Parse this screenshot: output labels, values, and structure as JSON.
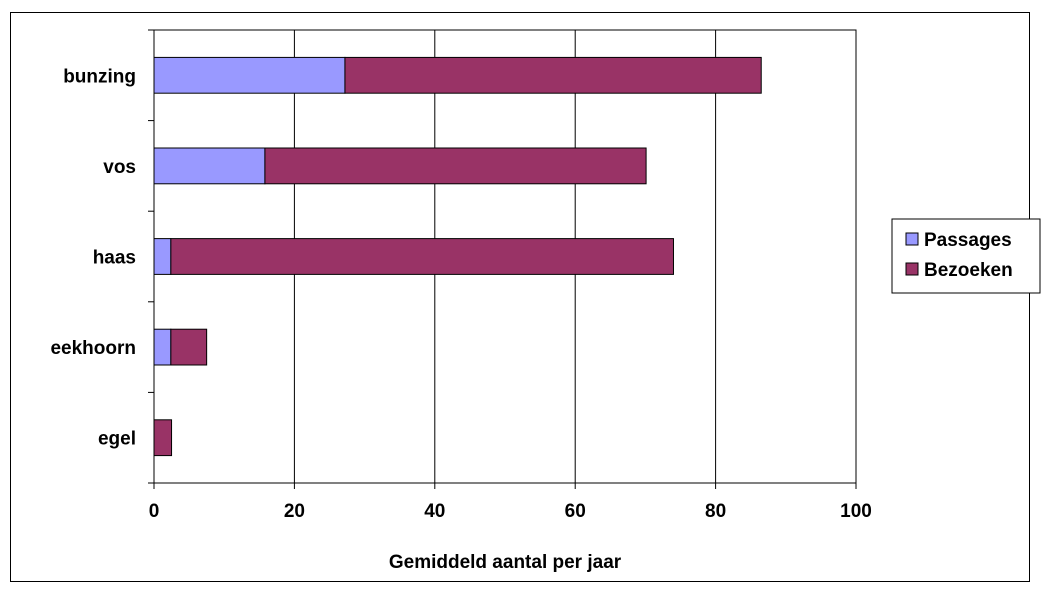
{
  "chart_data": {
    "type": "bar",
    "orientation": "horizontal",
    "stacked": true,
    "categories": [
      "bunzing",
      "vos",
      "haas",
      "eekhoorn",
      "egel"
    ],
    "series": [
      {
        "name": "Passages",
        "values": [
          27.2,
          15.8,
          2.4,
          2.4,
          0
        ],
        "color": "#9999ff"
      },
      {
        "name": "Bezoeken",
        "values": [
          59.3,
          54.3,
          71.6,
          5.1,
          2.5
        ],
        "color": "#993366"
      }
    ],
    "xlabel": "Gemiddeld aantal per jaar",
    "ylabel": "",
    "xlim": [
      0,
      100
    ],
    "xticks": [
      "0",
      "20",
      "40",
      "60",
      "80",
      "100"
    ],
    "grid": true,
    "legend_position": "right"
  }
}
